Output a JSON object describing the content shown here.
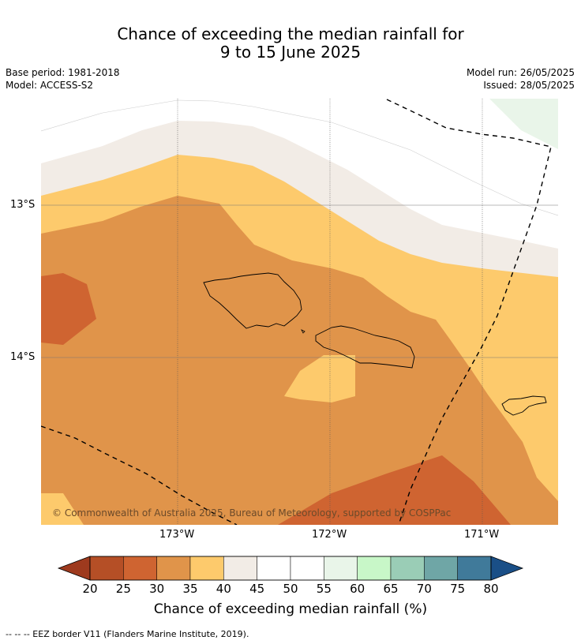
{
  "title_line1": "Chance of exceeding the median rainfall for",
  "title_line2": "9 to 15 June 2025",
  "meta": {
    "base_period": "Base period: 1981-2018",
    "model": "Model: ACCESS-S2",
    "model_run": "Model run: 26/05/2025",
    "issued": "Issued: 28/05/2025"
  },
  "map": {
    "lat_labels": [
      "13°S",
      "14°S"
    ],
    "lon_labels": [
      "173°W",
      "172°W",
      "171°W"
    ],
    "copyright": "© Commonwealth of Australia 2025, Bureau of Meteorology, supported by COSPPac"
  },
  "colorbar": {
    "ticks": [
      "20",
      "25",
      "30",
      "35",
      "40",
      "45",
      "50",
      "55",
      "60",
      "65",
      "70",
      "75",
      "80"
    ],
    "colors": [
      "#b54f26",
      "#cf6431",
      "#e0944a",
      "#fdca6c",
      "#f2ece6",
      "#ffffff",
      "#ffffff",
      "#e9f5e9",
      "#c8f7c8",
      "#9acdb6",
      "#6fa6a6",
      "#407a9a"
    ],
    "under_color": "#9e3a1e",
    "over_color": "#1a4f87",
    "label": "Chance of exceeding median rainfall (%)"
  },
  "footnote": "-- -- -- EEZ border V11 (Flanders Marine Institute, 2019)."
}
